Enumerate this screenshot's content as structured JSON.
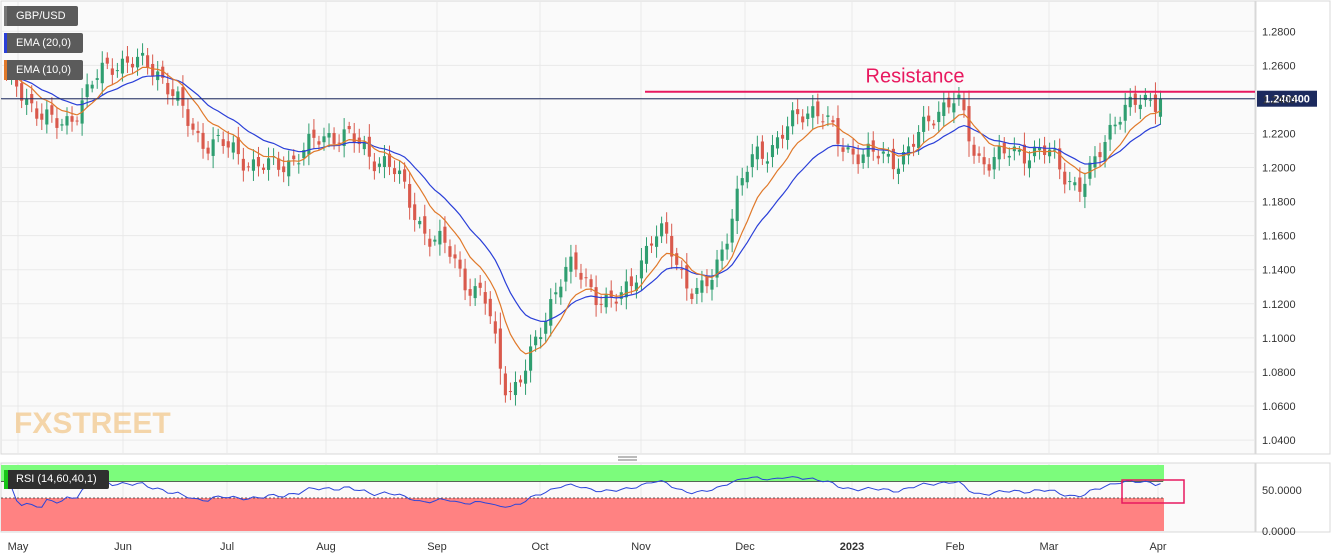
{
  "legend": {
    "symbol": "GBP/USD",
    "ema20_label": "EMA (20,0)",
    "ema10_label": "EMA (10,0)",
    "rsi_label": "RSI (14,60,40,1)"
  },
  "watermark": "FXSTREET",
  "colors": {
    "bull": "#2f9e70",
    "bear": "#d9594c",
    "ema20": "#2a3fd8",
    "ema10": "#e0792a",
    "resistance": "#e8195f",
    "price_line": "#1c2a5e",
    "rsi_line": "#2b45d9",
    "rsi_upper_zone": "#7cfc7c",
    "rsi_lower_zone": "#ff8282",
    "price_badge": "#1c2a5e"
  },
  "chart_data": [
    {
      "type": "candlestick",
      "symbol": "GBP/USD",
      "timeframe": "daily",
      "x_labels": [
        "May",
        "Jun",
        "Jul",
        "Aug",
        "Sep",
        "Oct",
        "Nov",
        "Dec",
        "2023",
        "Feb",
        "Mar",
        "Apr"
      ],
      "y_ticks": [
        "1.2800",
        "1.2600",
        "1.2400",
        "1.2200",
        "1.2000",
        "1.1800",
        "1.1600",
        "1.1400",
        "1.1200",
        "1.1000",
        "1.0800",
        "1.0600",
        "1.0400"
      ],
      "ylim": [
        1.033,
        1.296
      ],
      "last_price": 1.2404,
      "last_price_label": "1.240400",
      "resistance": {
        "label": "Resistance",
        "value": 1.2445,
        "from": "Oct",
        "to": "Apr"
      },
      "anchors": [
        {
          "month": "May",
          "close": 1.25
        },
        {
          "month": "May",
          "close": 1.225
        },
        {
          "month": "May",
          "close": 1.262
        },
        {
          "month": "Jun",
          "close": 1.26
        },
        {
          "month": "Jun",
          "close": 1.215
        },
        {
          "month": "Jul",
          "close": 1.2
        },
        {
          "month": "Aug",
          "close": 1.22
        },
        {
          "month": "Aug",
          "close": 1.205
        },
        {
          "month": "Sep",
          "close": 1.155
        },
        {
          "month": "Sep",
          "close": 1.125
        },
        {
          "month": "Sep",
          "close": 1.07
        },
        {
          "month": "Oct",
          "close": 1.14
        },
        {
          "month": "Oct",
          "close": 1.12
        },
        {
          "month": "Nov",
          "close": 1.16
        },
        {
          "month": "Nov",
          "close": 1.125
        },
        {
          "month": "Nov",
          "close": 1.21
        },
        {
          "month": "Dec",
          "close": 1.235
        },
        {
          "month": "Dec",
          "close": 1.21
        },
        {
          "month": "2023",
          "close": 1.205
        },
        {
          "month": "2023",
          "close": 1.24
        },
        {
          "month": "Feb",
          "close": 1.205
        },
        {
          "month": "Feb",
          "close": 1.21
        },
        {
          "month": "Mar",
          "close": 1.19
        },
        {
          "month": "Mar",
          "close": 1.235
        },
        {
          "month": "Apr",
          "close": 1.2404
        }
      ]
    },
    {
      "type": "line",
      "name": "RSI (14,60,40,1)",
      "y_ticks": [
        "50.0000",
        "0.0000"
      ],
      "levels": [
        60,
        40
      ],
      "ylim": [
        0,
        80
      ]
    }
  ]
}
